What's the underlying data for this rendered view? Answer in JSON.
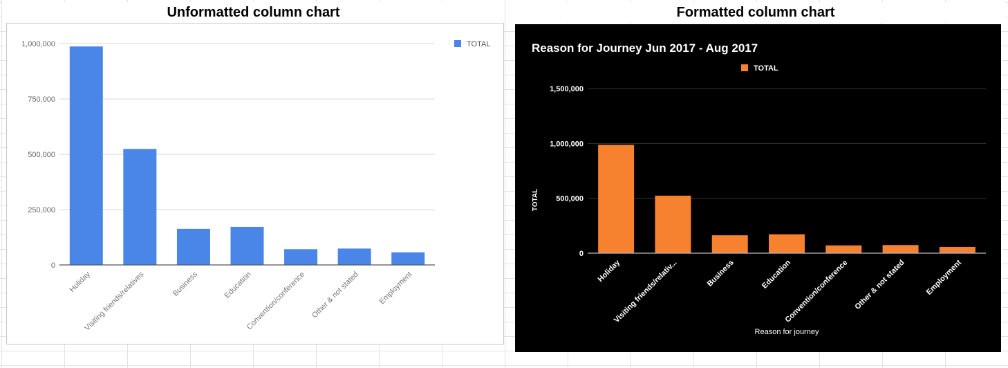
{
  "headers": {
    "left": "Unformatted column chart",
    "right": "Formatted column chart"
  },
  "colors": {
    "left_bar": "#4a86e8",
    "right_bar": "#f6812f",
    "left_grid": "#d9d9d9",
    "right_grid": "#333333"
  },
  "chart_data": [
    {
      "type": "bar",
      "title": "",
      "xlabel": "",
      "ylabel": "",
      "legend": "top-right",
      "series": [
        {
          "name": "TOTAL",
          "values": [
            987000,
            524000,
            163000,
            172000,
            71000,
            74000,
            57000
          ]
        }
      ],
      "categories": [
        "Holiday",
        "Visiting friends/relatives",
        "Business",
        "Education",
        "Convention/conference",
        "Other & not stated",
        "Employment"
      ],
      "ylim": [
        0,
        1000000
      ],
      "yticks": [
        "0",
        "250,000",
        "500,000",
        "750,000",
        "1,000,000"
      ],
      "grid": true
    },
    {
      "type": "bar",
      "title": "Reason for Journey Jun 2017 - Aug 2017",
      "xlabel": "Reason for journey",
      "ylabel": "TOTAL",
      "legend": "top",
      "series": [
        {
          "name": "TOTAL",
          "values": [
            987000,
            524000,
            163000,
            172000,
            71000,
            74000,
            57000
          ]
        }
      ],
      "categories": [
        "Holiday",
        "Visiting friends/relativ...",
        "Business",
        "Education",
        "Convention/conference",
        "Other & not stated",
        "Employment"
      ],
      "ylim": [
        0,
        1500000
      ],
      "yticks": [
        "0",
        "500,000",
        "1,000,000",
        "1,500,000"
      ],
      "grid": true
    }
  ]
}
